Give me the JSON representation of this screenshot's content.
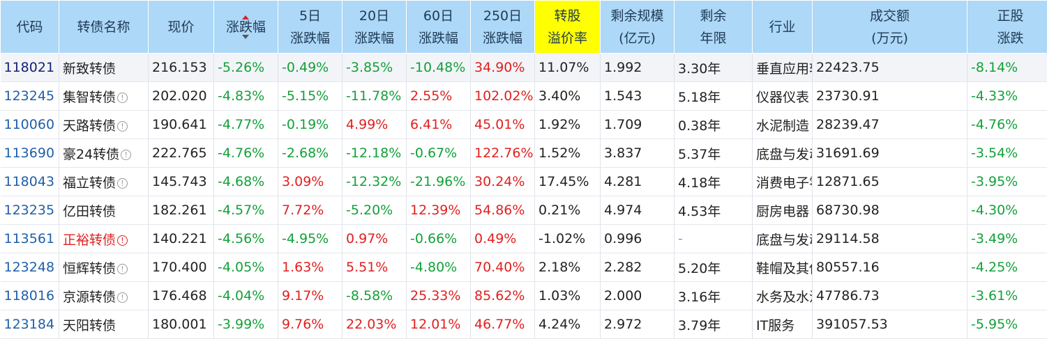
{
  "columns": [
    {
      "key": "code",
      "label": "代码"
    },
    {
      "key": "name",
      "label": "转债名称"
    },
    {
      "key": "price",
      "label": "现价"
    },
    {
      "key": "change",
      "label": "涨跌幅"
    },
    {
      "key": "d5_l1",
      "label": "5日"
    },
    {
      "key": "d5_l2",
      "label": "涨跌幅"
    },
    {
      "key": "d20_l1",
      "label": "20日"
    },
    {
      "key": "d20_l2",
      "label": "涨跌幅"
    },
    {
      "key": "d60_l1",
      "label": "60日"
    },
    {
      "key": "d60_l2",
      "label": "涨跌幅"
    },
    {
      "key": "d250_l1",
      "label": "250日"
    },
    {
      "key": "d250_l2",
      "label": "涨跌幅"
    },
    {
      "key": "premium_l1",
      "label": "转股"
    },
    {
      "key": "premium_l2",
      "label": "溢价率"
    },
    {
      "key": "scale_l1",
      "label": "剩余规模"
    },
    {
      "key": "scale_l2",
      "label": "(亿元)"
    },
    {
      "key": "years_l1",
      "label": "剩余"
    },
    {
      "key": "years_l2",
      "label": "年限"
    },
    {
      "key": "industry",
      "label": "行业"
    },
    {
      "key": "volume_l1",
      "label": "成交额"
    },
    {
      "key": "volume_l2",
      "label": "(万元)"
    },
    {
      "key": "stock_l1",
      "label": "正股"
    },
    {
      "key": "stock_l2",
      "label": "涨跌"
    }
  ],
  "highlight_color": "#ffff00",
  "rows": [
    {
      "code": "118021",
      "name": "新致转债",
      "icon": "",
      "price": "216.153",
      "change": "-5.26%",
      "d5": "-0.49%",
      "d20": "-3.85%",
      "d60": "-10.48%",
      "d250": "34.90%",
      "premium": "11.07%",
      "scale": "1.992",
      "years": "3.30年",
      "industry": "垂直应用软件",
      "volume": "22423.75",
      "stock": "-8.14%"
    },
    {
      "code": "123245",
      "name": "集智转债",
      "icon": "!",
      "price": "202.020",
      "change": "-4.83%",
      "d5": "-5.15%",
      "d20": "-11.78%",
      "d60": "2.55%",
      "d250": "102.02%",
      "premium": "3.40%",
      "scale": "1.543",
      "years": "5.18年",
      "industry": "仪器仪表",
      "volume": "23730.91",
      "stock": "-4.33%"
    },
    {
      "code": "110060",
      "name": "天路转债",
      "icon": "!",
      "price": "190.641",
      "change": "-4.77%",
      "d5": "-0.19%",
      "d20": "4.99%",
      "d60": "6.41%",
      "d250": "45.01%",
      "premium": "1.92%",
      "scale": "1.709",
      "years": "0.38年",
      "industry": "水泥制造",
      "volume": "28239.47",
      "stock": "-4.76%"
    },
    {
      "code": "113690",
      "name": "豪24转债",
      "icon": "!",
      "price": "222.765",
      "change": "-4.76%",
      "d5": "-2.68%",
      "d20": "-12.18%",
      "d60": "-0.67%",
      "d250": "122.76%",
      "premium": "1.52%",
      "scale": "3.837",
      "years": "5.37年",
      "industry": "底盘与发动机系统",
      "volume": "31691.69",
      "stock": "-3.54%"
    },
    {
      "code": "118043",
      "name": "福立转债",
      "icon": "!",
      "price": "145.743",
      "change": "-4.68%",
      "d5": "3.09%",
      "d20": "-12.32%",
      "d60": "-21.96%",
      "d250": "30.24%",
      "premium": "17.45%",
      "scale": "4.281",
      "years": "4.18年",
      "industry": "消费电子零部件及组装",
      "volume": "12871.65",
      "stock": "-3.95%"
    },
    {
      "code": "123235",
      "name": "亿田转债",
      "icon": "",
      "price": "182.261",
      "change": "-4.57%",
      "d5": "7.72%",
      "d20": "-5.20%",
      "d60": "12.39%",
      "d250": "54.86%",
      "premium": "0.21%",
      "scale": "4.974",
      "years": "4.53年",
      "industry": "厨房电器",
      "volume": "68730.98",
      "stock": "-4.30%"
    },
    {
      "code": "113561",
      "name": "正裕转债",
      "icon": "!",
      "price": "140.221",
      "change": "-4.56%",
      "d5": "-4.95%",
      "d20": "0.97%",
      "d60": "-0.66%",
      "d250": "0.49%",
      "premium": "-1.02%",
      "scale": "0.996",
      "years": "-",
      "industry": "底盘与发动机系统",
      "volume": "29114.58",
      "stock": "-3.49%"
    },
    {
      "code": "123248",
      "name": "恒辉转债",
      "icon": "!",
      "price": "170.400",
      "change": "-4.05%",
      "d5": "1.63%",
      "d20": "5.51%",
      "d60": "-4.80%",
      "d250": "70.40%",
      "premium": "2.18%",
      "scale": "2.282",
      "years": "5.20年",
      "industry": "鞋帽及其他",
      "volume": "80557.16",
      "stock": "-4.25%"
    },
    {
      "code": "118016",
      "name": "京源转债",
      "icon": "!",
      "price": "176.468",
      "change": "-4.04%",
      "d5": "9.17%",
      "d20": "-8.58%",
      "d60": "25.33%",
      "d250": "85.62%",
      "premium": "1.03%",
      "scale": "2.000",
      "years": "3.16年",
      "industry": "水务及水治理",
      "volume": "47786.73",
      "stock": "-3.61%"
    },
    {
      "code": "123184",
      "name": "天阳转债",
      "icon": "",
      "price": "180.001",
      "change": "-3.99%",
      "d5": "9.76%",
      "d20": "22.03%",
      "d60": "12.01%",
      "d250": "46.77%",
      "premium": "4.24%",
      "scale": "2.972",
      "years": "3.79年",
      "industry": "IT服务",
      "volume": "391057.53",
      "stock": "-5.95%"
    }
  ]
}
